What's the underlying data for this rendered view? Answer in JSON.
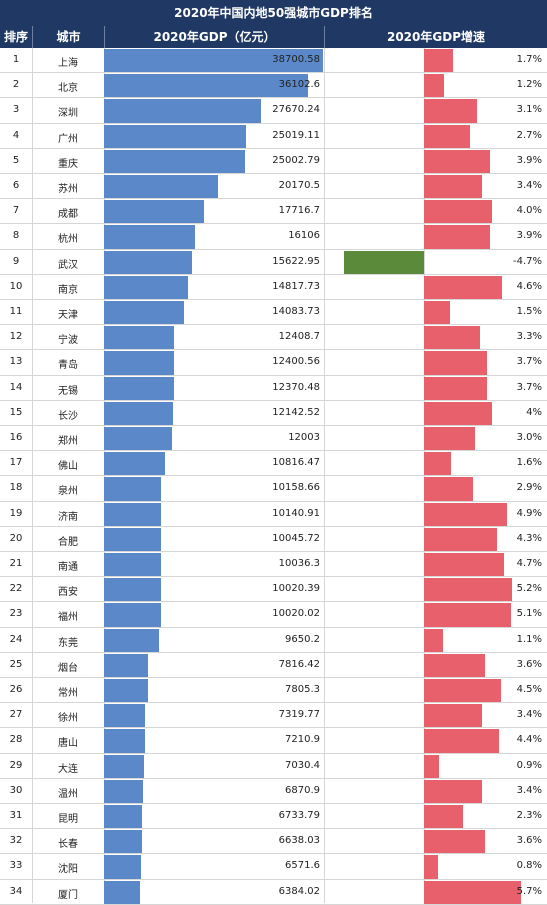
{
  "chart_data": {
    "type": "table",
    "title": "2020年中国内地50强城市GDP排名",
    "columns": [
      "排序",
      "城市",
      "2020年GDP（亿元）",
      "2020年GDP增速"
    ],
    "colors": {
      "header": "#1f3864",
      "gdp_bar": "#5b88c8",
      "growth_positive": "#e8606c",
      "growth_negative": "#5a8a3a"
    },
    "rows": [
      {
        "rank": "1",
        "city": "上海",
        "gdp": "38700.58",
        "growth": "1.7%"
      },
      {
        "rank": "2",
        "city": "北京",
        "gdp": "36102.6",
        "growth": "1.2%"
      },
      {
        "rank": "3",
        "city": "深圳",
        "gdp": "27670.24",
        "growth": "3.1%"
      },
      {
        "rank": "4",
        "city": "广州",
        "gdp": "25019.11",
        "growth": "2.7%"
      },
      {
        "rank": "5",
        "city": "重庆",
        "gdp": "25002.79",
        "growth": "3.9%"
      },
      {
        "rank": "6",
        "city": "苏州",
        "gdp": "20170.5",
        "growth": "3.4%"
      },
      {
        "rank": "7",
        "city": "成都",
        "gdp": "17716.7",
        "growth": "4.0%"
      },
      {
        "rank": "8",
        "city": "杭州",
        "gdp": "16106",
        "growth": "3.9%"
      },
      {
        "rank": "9",
        "city": "武汉",
        "gdp": "15622.95",
        "growth": "-4.7%"
      },
      {
        "rank": "10",
        "city": "南京",
        "gdp": "14817.73",
        "growth": "4.6%"
      },
      {
        "rank": "11",
        "city": "天津",
        "gdp": "14083.73",
        "growth": "1.5%"
      },
      {
        "rank": "12",
        "city": "宁波",
        "gdp": "12408.7",
        "growth": "3.3%"
      },
      {
        "rank": "13",
        "city": "青岛",
        "gdp": "12400.56",
        "growth": "3.7%"
      },
      {
        "rank": "14",
        "city": "无锡",
        "gdp": "12370.48",
        "growth": "3.7%"
      },
      {
        "rank": "15",
        "city": "长沙",
        "gdp": "12142.52",
        "growth": "4%"
      },
      {
        "rank": "16",
        "city": "郑州",
        "gdp": "12003",
        "growth": "3.0%"
      },
      {
        "rank": "17",
        "city": "佛山",
        "gdp": "10816.47",
        "growth": "1.6%"
      },
      {
        "rank": "18",
        "city": "泉州",
        "gdp": "10158.66",
        "growth": "2.9%"
      },
      {
        "rank": "19",
        "city": "济南",
        "gdp": "10140.91",
        "growth": "4.9%"
      },
      {
        "rank": "20",
        "city": "合肥",
        "gdp": "10045.72",
        "growth": "4.3%"
      },
      {
        "rank": "21",
        "city": "南通",
        "gdp": "10036.3",
        "growth": "4.7%"
      },
      {
        "rank": "22",
        "city": "西安",
        "gdp": "10020.39",
        "growth": "5.2%"
      },
      {
        "rank": "23",
        "city": "福州",
        "gdp": "10020.02",
        "growth": "5.1%"
      },
      {
        "rank": "24",
        "city": "东莞",
        "gdp": "9650.2",
        "growth": "1.1%"
      },
      {
        "rank": "25",
        "city": "烟台",
        "gdp": "7816.42",
        "growth": "3.6%"
      },
      {
        "rank": "26",
        "city": "常州",
        "gdp": "7805.3",
        "growth": "4.5%"
      },
      {
        "rank": "27",
        "city": "徐州",
        "gdp": "7319.77",
        "growth": "3.4%"
      },
      {
        "rank": "28",
        "city": "唐山",
        "gdp": "7210.9",
        "growth": "4.4%"
      },
      {
        "rank": "29",
        "city": "大连",
        "gdp": "7030.4",
        "growth": "0.9%"
      },
      {
        "rank": "30",
        "city": "温州",
        "gdp": "6870.9",
        "growth": "3.4%"
      },
      {
        "rank": "31",
        "city": "昆明",
        "gdp": "6733.79",
        "growth": "2.3%"
      },
      {
        "rank": "32",
        "city": "长春",
        "gdp": "6638.03",
        "growth": "3.6%"
      },
      {
        "rank": "33",
        "city": "沈阳",
        "gdp": "6571.6",
        "growth": "0.8%"
      },
      {
        "rank": "34",
        "city": "厦门",
        "gdp": "6384.02",
        "growth": "5.7%"
      }
    ]
  }
}
